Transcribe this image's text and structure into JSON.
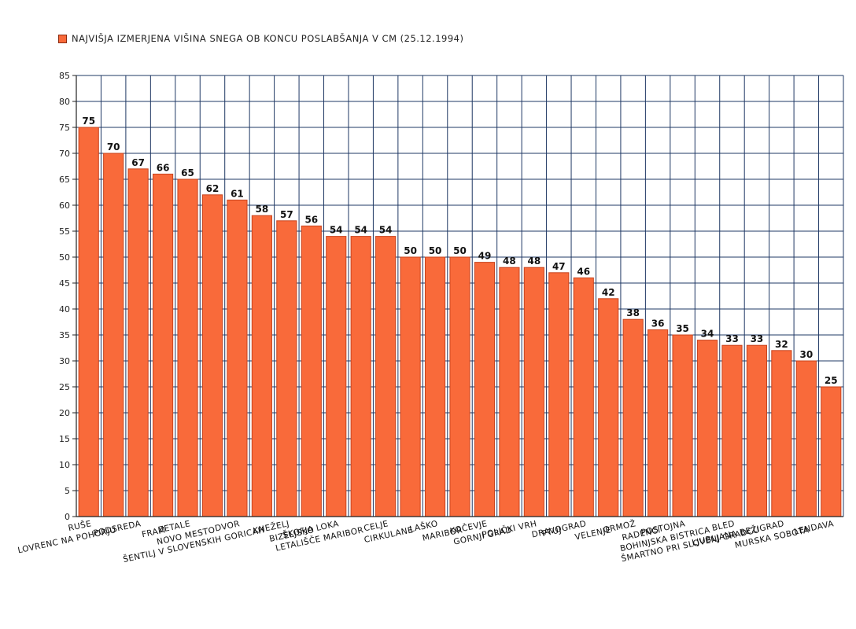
{
  "chart_data": {
    "type": "bar",
    "legend": "Najvišja izmerjena višina snega ob koncu poslabšanja v cm (25.12.1994)",
    "categories": [
      "Ruše",
      "Lovrenc na Pohorju",
      "Podsreda",
      "Fram",
      "Zetale",
      "Novo mesto",
      "Dvor",
      "Šentilj v Slovenskih goricah",
      "Kneželj",
      "Bizeljsko",
      "Škofja Loka",
      "Letališče Maribor",
      "Celje",
      "Cirkulane",
      "Laško",
      "Maribor",
      "Kočevje",
      "Gornji Grad",
      "Polički vrh",
      "Ptuj",
      "Dravograd",
      "Velenje",
      "Ormož",
      "Radenci",
      "Postojna",
      "Bohinjska Bistrica",
      "Bled",
      "Šmartno pri Slovenj Gradcu",
      "Ljubljana Bežigrad",
      "Murska Sobota",
      "Lendava"
    ],
    "values": [
      75,
      70,
      67,
      66,
      65,
      62,
      61,
      58,
      57,
      56,
      54,
      54,
      54,
      50,
      50,
      50,
      49,
      48,
      48,
      47,
      46,
      42,
      38,
      36,
      35,
      34,
      33,
      33,
      32,
      30,
      25
    ],
    "ylim": [
      0,
      85
    ],
    "ytick_step": 5,
    "grid": true,
    "legend_position": "top-left",
    "bar_color": "#f96a3a",
    "bar_border_color": "#c8441e",
    "grid_color": "#1f3864"
  }
}
